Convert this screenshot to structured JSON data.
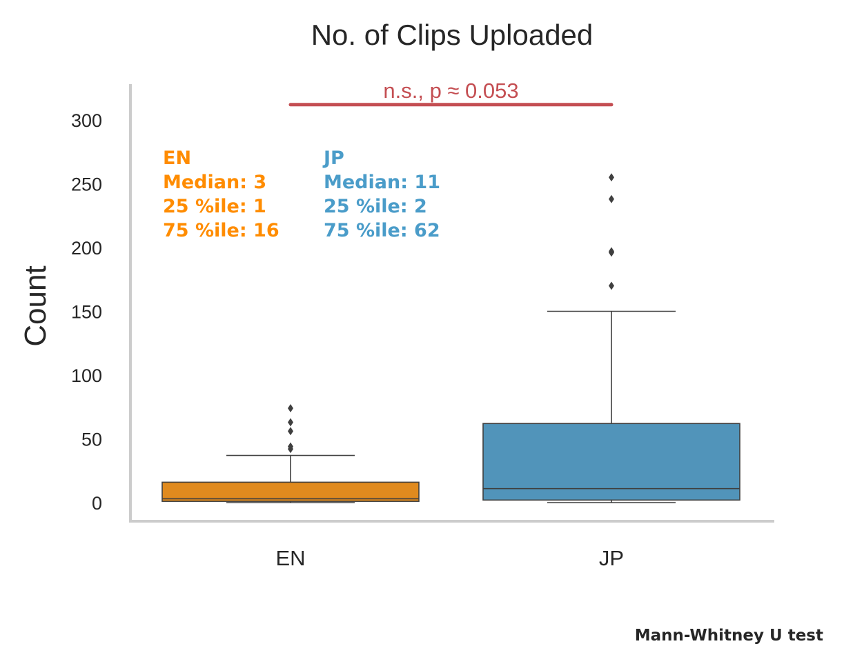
{
  "chart_data": {
    "type": "box",
    "title": "No. of Clips Uploaded",
    "ylabel": "Count",
    "xlabel": "",
    "ylim": [
      -15,
      325
    ],
    "yticks": [
      0,
      50,
      100,
      150,
      200,
      250,
      300
    ],
    "categories": [
      "EN",
      "JP"
    ],
    "groups": [
      {
        "category": "EN",
        "color": "#E08A1E",
        "q1": 1,
        "median": 3,
        "q3": 16,
        "whisker_low": 0,
        "whisker_high": 37,
        "outliers": [
          42,
          44,
          56,
          63,
          74
        ]
      },
      {
        "category": "JP",
        "color": "#5194BA",
        "q1": 2,
        "median": 11,
        "q3": 62,
        "whisker_low": 0,
        "whisker_high": 150,
        "outliers": [
          170,
          196,
          197,
          238,
          255
        ]
      }
    ],
    "significance": {
      "label": "n.s., p ≈ 0.053",
      "y": 312,
      "color": "#C44E52"
    },
    "annotations": [
      {
        "title": "EN",
        "lines": [
          "Median: 3",
          "25 %ile: 1",
          "75 %ile: 16"
        ],
        "color": "#FF8C00"
      },
      {
        "title": "JP",
        "lines": [
          "Median: 11",
          "25 %ile: 2",
          "75 %ile: 62"
        ],
        "color": "#4A9CC9"
      }
    ],
    "footnote": "Mann-Whitney U test",
    "grid": false
  }
}
